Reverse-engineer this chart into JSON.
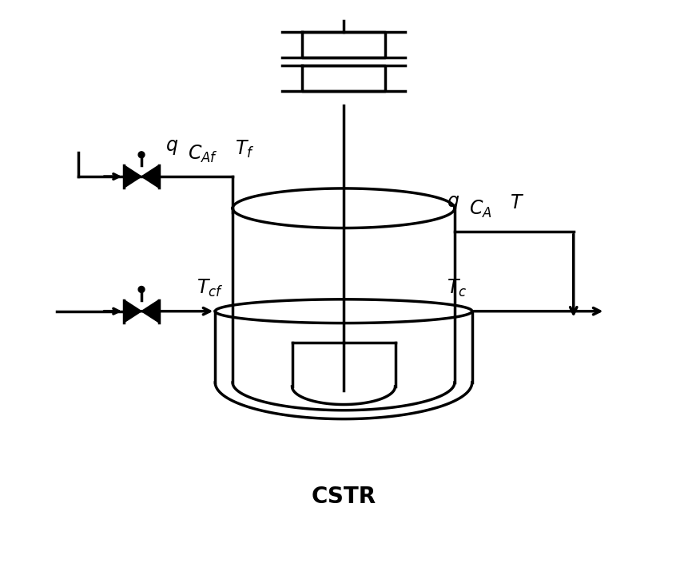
{
  "bg_color": "#ffffff",
  "line_color": "#000000",
  "lw": 2.5,
  "label_cstr": "CSTR"
}
